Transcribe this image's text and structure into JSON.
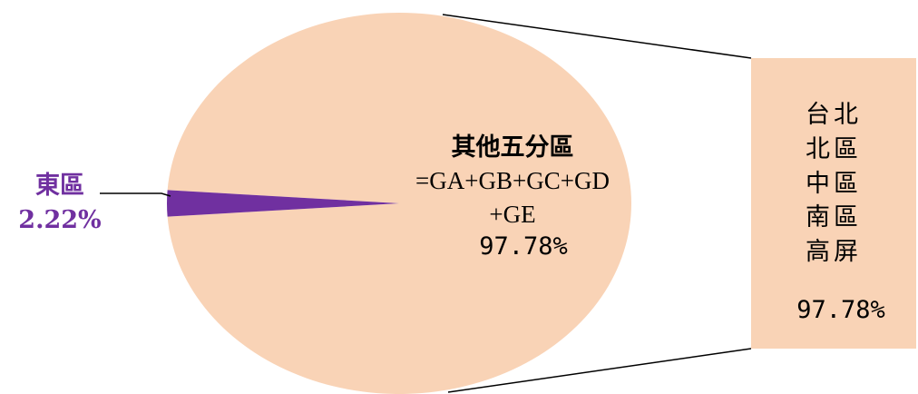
{
  "chart_data": {
    "type": "pie",
    "slices": [
      {
        "label": "東區",
        "value": 2.22,
        "value_text": "2.22%",
        "color": "#7030a0"
      },
      {
        "label": "其他五分區",
        "formula_line1": "=GA+GB+GC+GD",
        "formula_line2": "+GE",
        "value": 97.78,
        "value_text": "97.78%",
        "color": "#f9d3b6"
      }
    ],
    "breakdown": {
      "regions": [
        "台北",
        "北區",
        "中區",
        "南區",
        "高屏"
      ],
      "value_text": "97.78%",
      "color": "#f9d3b6"
    }
  }
}
